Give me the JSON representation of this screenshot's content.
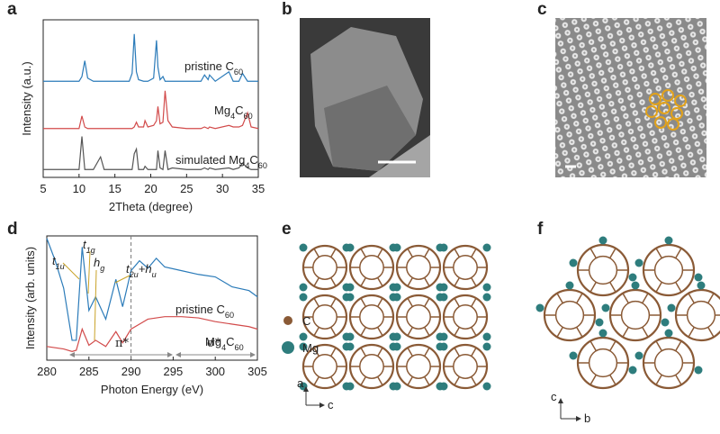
{
  "panel_labels": [
    "a",
    "b",
    "c",
    "d",
    "e",
    "f"
  ],
  "chart_data": [
    {
      "type": "line",
      "xlabel": "2Theta (degree)",
      "ylabel": "Intensity (a.u.)",
      "xlim": [
        5,
        35
      ],
      "xticks": [
        5,
        10,
        15,
        20,
        25,
        30,
        35
      ],
      "ylim": [
        0,
        10
      ],
      "x": [
        5,
        7,
        9,
        10,
        10.4,
        10.8,
        11.2,
        12,
        13,
        13.5,
        15,
        17,
        17.4,
        17.7,
        18,
        18.3,
        19,
        19.2,
        19.6,
        20.4,
        20.8,
        21,
        21.3,
        21.7,
        22,
        22.4,
        23,
        25,
        27,
        27.5,
        28,
        28.2,
        29,
        30.9,
        31.5,
        32.3,
        32.8,
        33.5,
        34,
        35
      ],
      "series": [
        {
          "name": "pristine C60",
          "color": "#2b7bb9",
          "values": [
            6.1,
            6.1,
            6.1,
            6.1,
            6.4,
            7.4,
            6.3,
            6.1,
            6.1,
            6.1,
            6.1,
            6.1,
            6.6,
            9.1,
            6.7,
            6.2,
            6.1,
            6.1,
            6.1,
            6.3,
            8.7,
            7.0,
            6.2,
            6.4,
            6.1,
            6.1,
            6.1,
            6.1,
            6.1,
            6.5,
            6.2,
            6.5,
            6.1,
            6.7,
            6.1,
            6.1,
            6.6,
            6.1,
            6.1,
            6.1
          ]
        },
        {
          "name": "Mg4C60",
          "color": "#d24b4b",
          "values": [
            3.1,
            3.1,
            3.1,
            3.1,
            3.9,
            3.2,
            3.1,
            3.1,
            3.1,
            3.1,
            3.1,
            3.1,
            3.1,
            3.2,
            3.5,
            3.2,
            3.2,
            3.6,
            3.2,
            3.3,
            3.6,
            4.5,
            3.4,
            3.5,
            5.5,
            3.6,
            3.2,
            3.1,
            3.1,
            3.2,
            3.1,
            3.2,
            3.1,
            3.3,
            3.2,
            3.2,
            3.3,
            4.1,
            3.2,
            3.1
          ]
        },
        {
          "name": "simulated Mg4C60",
          "color": "#555555",
          "values": [
            0.5,
            0.5,
            0.5,
            0.5,
            2.6,
            0.5,
            0.5,
            0.5,
            1.3,
            0.5,
            0.5,
            0.5,
            0.5,
            1.5,
            1.8,
            0.5,
            0.5,
            0.7,
            0.5,
            0.5,
            0.5,
            1.7,
            0.6,
            0.5,
            1.7,
            0.5,
            0.6,
            0.5,
            0.5,
            0.6,
            0.5,
            0.6,
            0.5,
            0.6,
            0.5,
            0.6,
            0.9,
            0.6,
            0.5,
            0.5
          ]
        }
      ]
    },
    {
      "type": "line",
      "xlabel": "Photon Energy (eV)",
      "ylabel": "Intensity (arb. units)",
      "xlim": [
        280,
        305
      ],
      "xticks": [
        280,
        285,
        290,
        295,
        300,
        305
      ],
      "ylim": [
        0,
        10
      ],
      "vline": 290,
      "x": [
        280,
        281,
        282,
        283,
        283.5,
        284.2,
        285,
        285.8,
        287,
        288.2,
        289,
        290,
        291,
        292,
        293,
        294,
        296,
        298,
        300,
        302,
        304,
        305
      ],
      "series": [
        {
          "name": "pristine C60",
          "color": "#2b7bb9",
          "values": [
            9.8,
            8.0,
            5.8,
            1.6,
            1.6,
            9.1,
            4.0,
            5.1,
            3.3,
            6.5,
            4.3,
            7.2,
            8.0,
            7.4,
            8.2,
            7.5,
            7.2,
            6.9,
            6.7,
            5.9,
            5.6,
            5.1
          ]
        },
        {
          "name": "Mg4C60",
          "color": "#d24b4b",
          "values": [
            1.1,
            1.0,
            0.9,
            0.7,
            0.8,
            2.5,
            1.2,
            1.6,
            1.1,
            2.3,
            1.4,
            2.5,
            2.9,
            3.3,
            3.4,
            3.5,
            3.5,
            3.4,
            3.1,
            2.9,
            2.7,
            2.5
          ]
        }
      ],
      "annotations": [
        {
          "parts": [
            {
              "text": "t",
              "sub": "1u"
            }
          ]
        },
        {
          "parts": [
            {
              "text": "t",
              "sub": "1g"
            }
          ]
        },
        {
          "parts": [
            {
              "text": "h",
              "sub": "g"
            }
          ]
        },
        {
          "parts": [
            {
              "text": "t",
              "sub": "2u"
            },
            {
              "text": "+h",
              "sub": "u"
            }
          ]
        }
      ],
      "regions": [
        "π*",
        "σ*"
      ]
    }
  ],
  "panel_e": {
    "legend": [
      "C",
      "Mg"
    ],
    "axes": [
      "a",
      "c"
    ]
  },
  "panel_f": {
    "axes": [
      "c",
      "b"
    ]
  }
}
